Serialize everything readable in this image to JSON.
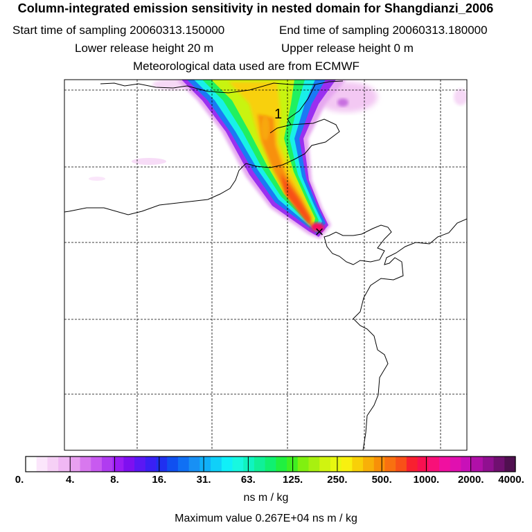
{
  "header": {
    "title": "Column-integrated emission sensitivity in nested domain for Shangdianzi_2006",
    "start_label": "Start time of sampling 20060313.150000",
    "end_label": "End time of sampling 20060313.180000",
    "lower_label": "Lower release height   20 m",
    "upper_label": "Upper release height    0 m",
    "met_label": "Meteorological data used are from ECMWF"
  },
  "map": {
    "plume_label": "1",
    "release_marker": "×"
  },
  "legend": {
    "tick_labels": [
      "0.",
      "4.",
      "8.",
      "16.",
      "31.",
      "63.",
      "125.",
      "250.",
      "500.",
      "1000.",
      "2000.",
      "4000."
    ],
    "colors": [
      "#ffffff",
      "#fbe6fb",
      "#f6d0f6",
      "#f0b8f4",
      "#e8a0f0",
      "#d878ee",
      "#c85af0",
      "#b03cf0",
      "#9a1cf4",
      "#7e10f0",
      "#5a18f4",
      "#3a20f4",
      "#2030f0",
      "#1050f0",
      "#1070f4",
      "#1890f4",
      "#10b0f8",
      "#10d0f8",
      "#10f0f8",
      "#18f8e0",
      "#10f4c0",
      "#10f098",
      "#10f070",
      "#20f040",
      "#40f020",
      "#80f010",
      "#a8f010",
      "#d0f410",
      "#e8f810",
      "#f8f010",
      "#f8d008",
      "#f8b008",
      "#f89008",
      "#f87010",
      "#f85018",
      "#f82030",
      "#f81050",
      "#f81078",
      "#f010a0",
      "#e010b0",
      "#c810b8",
      "#b010a8",
      "#901090",
      "#701070",
      "#501050"
    ],
    "units": "ns m / kg",
    "max_value": "Maximum value  0.267E+04 ns m / kg"
  }
}
